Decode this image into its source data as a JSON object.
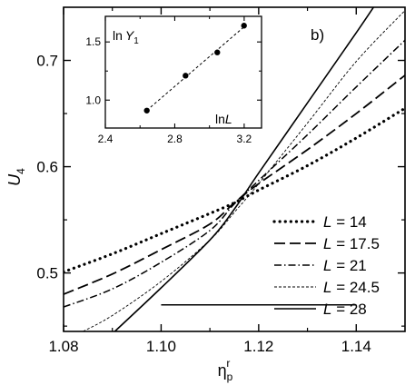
{
  "chart_data": [
    {
      "type": "line",
      "panel_label": "b)",
      "xlabel": {
        "base": "η",
        "sub": "p",
        "sup": "r"
      },
      "ylabel": {
        "base": "U",
        "sub": "4"
      },
      "xlim": [
        1.08,
        1.15
      ],
      "ylim": [
        0.445,
        0.75
      ],
      "x_ticks": [
        1.08,
        1.1,
        1.12,
        1.14
      ],
      "x_tick_labels": [
        "1.08",
        "1.10",
        "1.12",
        "1.14"
      ],
      "y_ticks": [
        0.5,
        0.6,
        0.7
      ],
      "y_tick_labels": [
        "0.5",
        "0.6",
        "0.7"
      ],
      "legend_position": "lower-right",
      "series": [
        {
          "name": "L = 14",
          "L": "14",
          "dash": "dotted",
          "x": [
            1.08,
            1.09,
            1.1,
            1.11,
            1.115,
            1.12,
            1.13,
            1.14,
            1.15
          ],
          "y": [
            0.501,
            0.518,
            0.537,
            0.556,
            0.566,
            0.578,
            0.601,
            0.627,
            0.655
          ]
        },
        {
          "name": "L = 17.5",
          "L": "17.5",
          "dash": "long-dash",
          "x": [
            1.08,
            1.09,
            1.1,
            1.11,
            1.115,
            1.12,
            1.13,
            1.14,
            1.15
          ],
          "y": [
            0.48,
            0.499,
            0.522,
            0.546,
            0.566,
            0.584,
            0.616,
            0.65,
            0.686
          ]
        },
        {
          "name": "L = 21",
          "L": "21",
          "dash": "dash-dot",
          "x": [
            1.08,
            1.09,
            1.1,
            1.11,
            1.115,
            1.12,
            1.13,
            1.14,
            1.15
          ],
          "y": [
            0.468,
            0.485,
            0.51,
            0.54,
            0.565,
            0.587,
            0.63,
            0.675,
            0.719
          ]
        },
        {
          "name": "L = 24.5",
          "L": "24.5",
          "dash": "short-dash",
          "x": [
            1.084,
            1.09,
            1.1,
            1.11,
            1.115,
            1.12,
            1.13,
            1.14,
            1.15
          ],
          "y": [
            0.445,
            0.46,
            0.492,
            0.531,
            0.557,
            0.584,
            0.641,
            0.699,
            0.747
          ]
        },
        {
          "name": "L = 28",
          "L": "28",
          "dash": "solid",
          "x": [
            1.0905,
            1.1,
            1.11,
            1.115,
            1.12,
            1.13,
            1.14,
            1.145
          ],
          "y": [
            0.445,
            0.486,
            0.531,
            0.56,
            0.594,
            0.66,
            0.726,
            0.76
          ]
        }
      ],
      "reference_line": {
        "x": [
          1.1,
          1.14
        ],
        "y": [
          0.47,
          0.47
        ]
      }
    },
    {
      "type": "scatter",
      "xlabel": {
        "base": "ln",
        "var": "L"
      },
      "ylabel": {
        "base": "ln",
        "var": "Y",
        "sub": "1"
      },
      "xlim": [
        2.4,
        3.3
      ],
      "ylim": [
        0.76,
        1.72
      ],
      "x_ticks": [
        2.4,
        2.8,
        3.2
      ],
      "x_tick_labels": [
        "2.4",
        "2.8",
        "3.2"
      ],
      "y_ticks": [
        1.0,
        1.5
      ],
      "y_tick_labels": [
        "1.0",
        "1.5"
      ],
      "x": [
        2.639,
        2.862,
        3.045,
        3.199
      ],
      "y": [
        0.91,
        1.21,
        1.41,
        1.64
      ],
      "fit_line": true
    }
  ]
}
